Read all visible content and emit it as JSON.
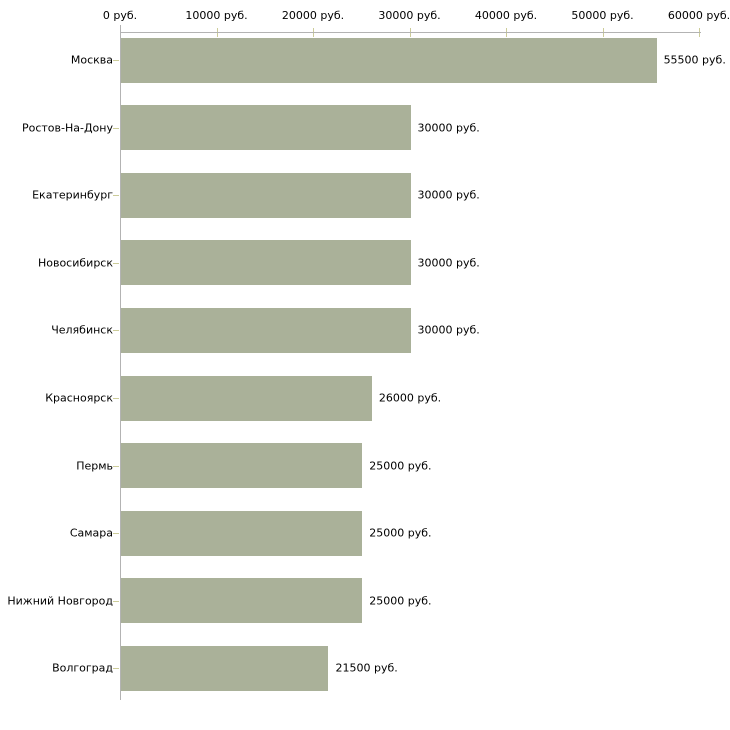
{
  "chart_data": {
    "type": "bar",
    "orientation": "horizontal",
    "title": "",
    "categories": [
      "Москва",
      "Ростов-На-Дону",
      "Екатеринбург",
      "Новосибирск",
      "Челябинск",
      "Красноярск",
      "Пермь",
      "Самара",
      "Нижний Новгород",
      "Волгоград"
    ],
    "values": [
      55500,
      30000,
      30000,
      30000,
      30000,
      26000,
      25000,
      25000,
      25000,
      21500
    ],
    "value_labels": [
      "55500 руб.",
      "30000 руб.",
      "30000 руб.",
      "30000 руб.",
      "30000 руб.",
      "26000 руб.",
      "25000 руб.",
      "25000 руб.",
      "25000 руб.",
      "21500 руб."
    ],
    "x_axis": {
      "position": "top",
      "min": 0,
      "max": 60000,
      "ticks": [
        0,
        10000,
        20000,
        30000,
        40000,
        50000,
        60000
      ],
      "tick_labels": [
        "0 руб.",
        "10000 руб.",
        "20000 руб.",
        "30000 руб.",
        "40000 руб.",
        "50000 руб.",
        "60000 руб."
      ],
      "unit_suffix": " руб."
    },
    "legend": null,
    "grid": false,
    "colors": {
      "bar": "#aab199",
      "axis_line": "#b3b3b3",
      "tick": "#cccc99",
      "text": "#000000",
      "background": "#ffffff"
    }
  }
}
